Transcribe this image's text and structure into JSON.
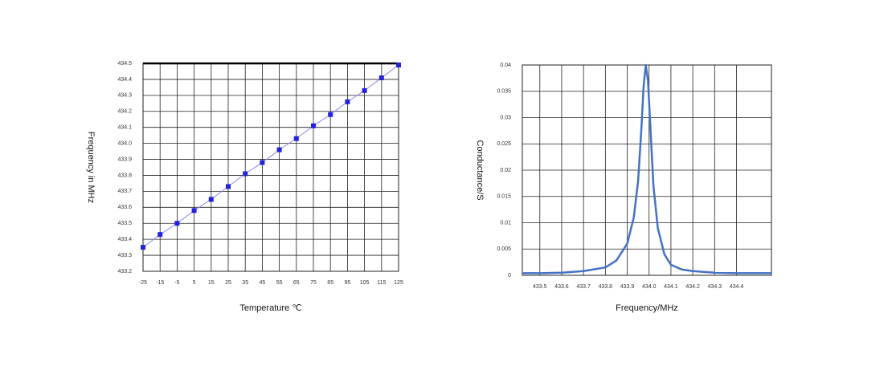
{
  "chart_data": [
    {
      "type": "line",
      "x_label": "Temperature ℃",
      "y_label": "Frequency in MHz",
      "x": [
        -25,
        -15,
        -5,
        5,
        15,
        25,
        35,
        45,
        55,
        65,
        75,
        85,
        95,
        105,
        115,
        125
      ],
      "series": [
        {
          "name": "Frequency",
          "color": "#8a8af0",
          "marker_color": "#2222dd",
          "values": [
            433.35,
            433.43,
            433.5,
            433.58,
            433.65,
            433.73,
            433.81,
            433.88,
            433.96,
            434.03,
            434.11,
            434.18,
            434.26,
            434.33,
            434.41,
            434.49
          ]
        }
      ],
      "xlim": [
        -25,
        125
      ],
      "xticks": [
        -25,
        -15,
        -5,
        5,
        15,
        25,
        35,
        45,
        55,
        65,
        75,
        85,
        95,
        105,
        115,
        125
      ],
      "ylim": [
        433.2,
        434.5
      ],
      "yticks": [
        433.2,
        433.3,
        433.4,
        433.5,
        433.6,
        433.7,
        433.8,
        433.9,
        {
          "value": 434.0,
          "label": "434.0"
        },
        434.1,
        434.2,
        434.3,
        434.4,
        434.5
      ],
      "grid": true,
      "markers": true
    },
    {
      "type": "line",
      "x_label": "Frequency/MHz",
      "y_label": "Conductance/S",
      "x": [
        433.42,
        433.5,
        433.6,
        433.7,
        433.8,
        433.85,
        433.9,
        433.93,
        433.95,
        433.965,
        433.975,
        433.985,
        433.995,
        434.005,
        434.02,
        434.04,
        434.07,
        434.1,
        434.15,
        434.2,
        434.3,
        434.4,
        434.56
      ],
      "series": [
        {
          "name": "Conductance",
          "color": "#4472c4",
          "values": [
            0.0004,
            0.0004,
            0.0005,
            0.0008,
            0.0015,
            0.0028,
            0.006,
            0.011,
            0.018,
            0.028,
            0.036,
            0.04,
            0.037,
            0.029,
            0.017,
            0.009,
            0.004,
            0.002,
            0.0011,
            0.0008,
            0.0005,
            0.0004,
            0.0004
          ]
        }
      ],
      "xlim": [
        433.42,
        434.56
      ],
      "xticks": [
        433.5,
        433.6,
        433.7,
        433.8,
        433.9,
        {
          "value": 434.0,
          "label": "434.0"
        },
        434.1,
        434.2,
        434.3,
        434.4
      ],
      "ylim": [
        0,
        0.04
      ],
      "yticks": [
        0,
        0.005,
        0.01,
        0.015,
        0.02,
        0.025,
        0.03,
        0.035,
        0.04
      ],
      "grid": true,
      "markers": false
    }
  ]
}
